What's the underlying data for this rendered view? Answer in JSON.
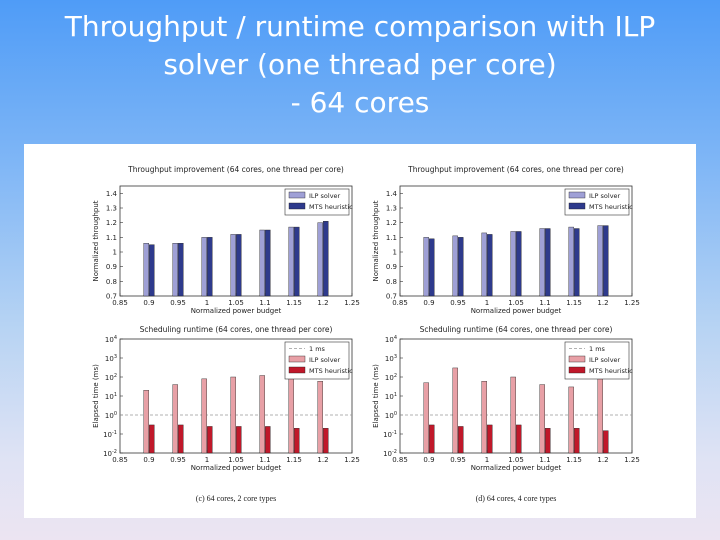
{
  "slide": {
    "title_lines": [
      "Throughput / runtime comparison with ILP",
      "solver (one thread per core)",
      "- 64 cores"
    ]
  },
  "colors": {
    "ilp_throughput": "#9fa0d6",
    "mts_throughput": "#2e3a8c",
    "ilp_runtime": "#e8a0a6",
    "mts_runtime": "#c0182a",
    "reference_line": "#999999"
  },
  "chart_data": [
    {
      "type": "bar",
      "title": "Throughput improvement (64 cores, one thread per core)",
      "xlabel": "Normalized power budget",
      "ylabel": "Normalized throughput",
      "categories": [
        0.9,
        0.95,
        1,
        1.05,
        1.1,
        1.15,
        1.2
      ],
      "xticks": [
        "0.85",
        "0.9",
        "0.95",
        "1",
        "1.05",
        "1.1",
        "1.15",
        "1.2",
        "1.25"
      ],
      "yticks": [
        "0.7",
        "0.8",
        "0.9",
        "1",
        "1.1",
        "1.2",
        "1.3",
        "1.4"
      ],
      "xlim": [
        0.85,
        1.25
      ],
      "ylim": [
        0.7,
        1.45
      ],
      "series": [
        {
          "name": "ILP solver",
          "values": [
            1.06,
            1.06,
            1.1,
            1.12,
            1.15,
            1.17,
            1.2
          ]
        },
        {
          "name": "MTS heuristic",
          "values": [
            1.05,
            1.06,
            1.1,
            1.12,
            1.15,
            1.17,
            1.21
          ]
        }
      ],
      "legend": "top-right"
    },
    {
      "type": "bar",
      "title": "Throughput improvement (64 cores, one thread per core)",
      "xlabel": "Normalized power budget",
      "ylabel": "Normalized throughput",
      "categories": [
        0.9,
        0.95,
        1,
        1.05,
        1.1,
        1.15,
        1.2
      ],
      "xticks": [
        "0.85",
        "0.9",
        "0.95",
        "1",
        "1.05",
        "1.1",
        "1.15",
        "1.2",
        "1.25"
      ],
      "yticks": [
        "0.7",
        "0.8",
        "0.9",
        "1",
        "1.1",
        "1.2",
        "1.3",
        "1.4"
      ],
      "xlim": [
        0.85,
        1.25
      ],
      "ylim": [
        0.7,
        1.45
      ],
      "series": [
        {
          "name": "ILP solver",
          "values": [
            1.1,
            1.11,
            1.13,
            1.14,
            1.16,
            1.17,
            1.18
          ]
        },
        {
          "name": "MTS heuristic",
          "values": [
            1.09,
            1.1,
            1.12,
            1.14,
            1.16,
            1.16,
            1.18
          ]
        }
      ],
      "legend": "top-right"
    },
    {
      "type": "bar",
      "title": "Scheduling runtime (64 cores, one thread per core)",
      "xlabel": "Normalized power budget",
      "ylabel": "Elapsed time (ms)",
      "scale": "log",
      "categories": [
        0.9,
        0.95,
        1,
        1.05,
        1.1,
        1.15,
        1.2
      ],
      "xticks": [
        "0.85",
        "0.9",
        "0.95",
        "1",
        "1.05",
        "1.1",
        "1.15",
        "1.2",
        "1.25"
      ],
      "yticks": [
        "10^-2",
        "10^-1",
        "10^0",
        "10^1",
        "10^2",
        "10^3",
        "10^4"
      ],
      "xlim": [
        0.85,
        1.25
      ],
      "ylim": [
        0.01,
        10000
      ],
      "reference_line": {
        "name": "1 ms",
        "value": 1
      },
      "series": [
        {
          "name": "ILP solver",
          "values": [
            20,
            40,
            80,
            100,
            120,
            100,
            60
          ]
        },
        {
          "name": "MTS heuristic",
          "values": [
            0.3,
            0.3,
            0.25,
            0.25,
            0.25,
            0.2,
            0.2
          ]
        }
      ],
      "legend": "top-right",
      "caption": "(c) 64 cores, 2 core types"
    },
    {
      "type": "bar",
      "title": "Scheduling runtime (64 cores, one thread per core)",
      "xlabel": "Normalized power budget",
      "ylabel": "Elapsed time (ms)",
      "scale": "log",
      "categories": [
        0.9,
        0.95,
        1,
        1.05,
        1.1,
        1.15,
        1.2
      ],
      "xticks": [
        "0.85",
        "0.9",
        "0.95",
        "1",
        "1.05",
        "1.1",
        "1.15",
        "1.2",
        "1.25"
      ],
      "yticks": [
        "10^-2",
        "10^-1",
        "10^0",
        "10^1",
        "10^2",
        "10^3",
        "10^4"
      ],
      "xlim": [
        0.85,
        1.25
      ],
      "ylim": [
        0.01,
        10000
      ],
      "reference_line": {
        "name": "1 ms",
        "value": 1
      },
      "series": [
        {
          "name": "ILP solver",
          "values": [
            50,
            300,
            60,
            100,
            40,
            30,
            80
          ]
        },
        {
          "name": "MTS heuristic",
          "values": [
            0.3,
            0.25,
            0.3,
            0.3,
            0.2,
            0.2,
            0.15
          ]
        }
      ],
      "legend": "top-right",
      "caption": "(d) 64 cores, 4 core types"
    }
  ]
}
